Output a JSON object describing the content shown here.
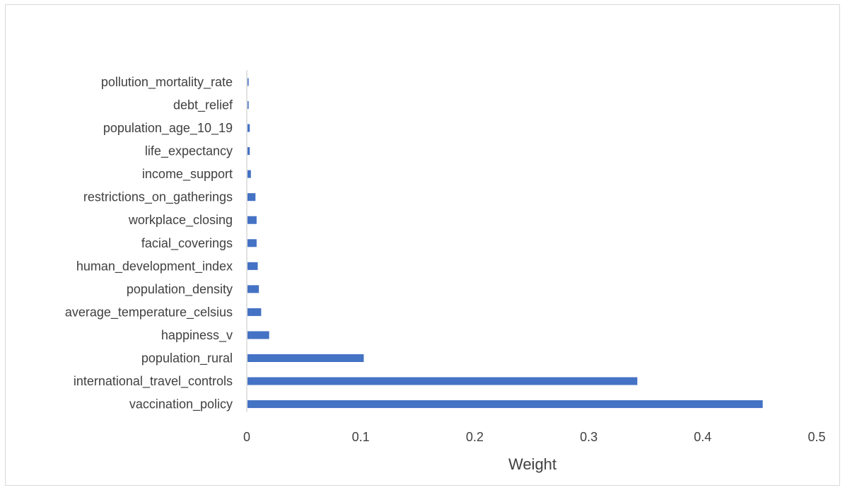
{
  "chart_data": {
    "type": "bar",
    "orientation": "horizontal",
    "title": "",
    "xlabel": "Weight",
    "ylabel": "",
    "xlim": [
      0,
      0.5
    ],
    "x_ticks": [
      "0",
      "0.1",
      "0.2",
      "0.3",
      "0.4",
      "0.5"
    ],
    "grid": false,
    "bar_color": "#4472c4",
    "categories": [
      "pollution_mortality_rate",
      "debt_relief",
      "population_age_10_19",
      "life_expectancy",
      "income_support",
      "restrictions_on_gatherings",
      "workplace_closing",
      "facial_coverings",
      "human_development_index",
      "population_density",
      "average_temperature_celsius",
      "happiness_v",
      "population_rural",
      "international_travel_controls",
      "vaccination_policy"
    ],
    "values": [
      0.001,
      0.001,
      0.002,
      0.002,
      0.003,
      0.007,
      0.008,
      0.008,
      0.009,
      0.01,
      0.012,
      0.019,
      0.102,
      0.342,
      0.452
    ]
  }
}
